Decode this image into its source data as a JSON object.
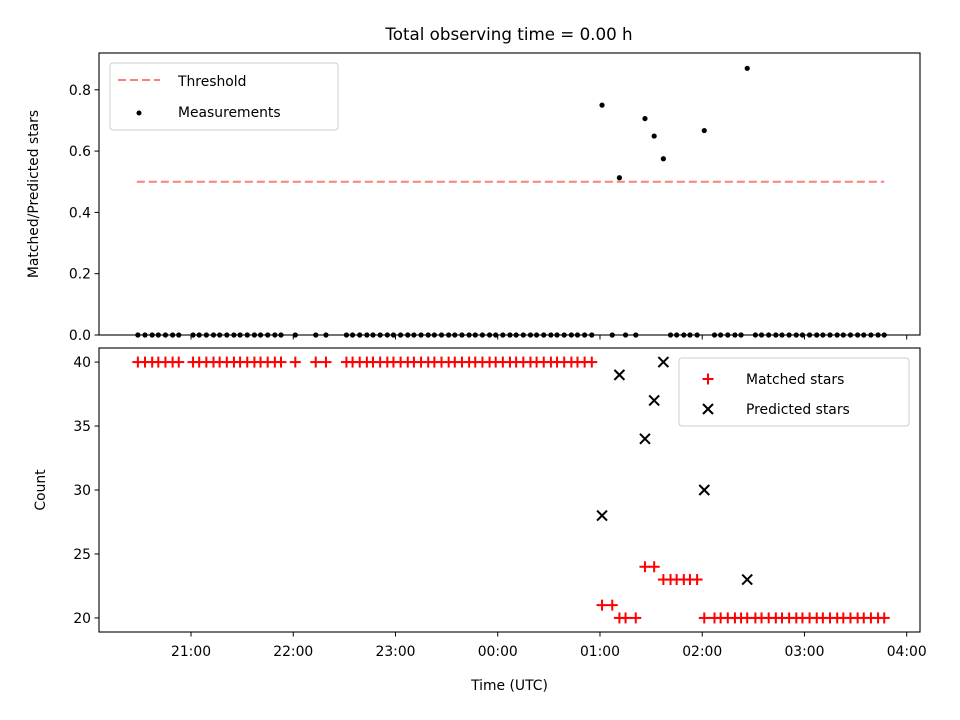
{
  "chart_data": {
    "title": "Total observing time = 0.00 h",
    "xlabel": "Time (UTC)",
    "x_tick_labels": [
      "21:00",
      "22:00",
      "23:00",
      "00:00",
      "01:00",
      "02:00",
      "03:00",
      "04:00"
    ],
    "x_ticks_hours": [
      21,
      22,
      23,
      24,
      25,
      26,
      27,
      28
    ],
    "xlim_hours": [
      20.1,
      28.13
    ],
    "colors": {
      "threshold": "#ff7f7f",
      "measurements": "#000000",
      "matched": "#ff0000",
      "predicted": "#000000"
    },
    "panels": [
      {
        "type": "scatter",
        "ylabel": "Matched/Predicted stars",
        "ylim": [
          0,
          0.92
        ],
        "yticks": [
          0.0,
          0.2,
          0.4,
          0.6,
          0.8
        ],
        "ytick_labels": [
          "0.0",
          "0.2",
          "0.4",
          "0.6",
          "0.8"
        ],
        "legend_position": "upper left",
        "threshold": {
          "name": "Threshold",
          "value": 0.5,
          "x_start": 20.47,
          "x_end": 27.78
        },
        "measurements": {
          "name": "Measurements",
          "points": [
            [
              20.48,
              0
            ],
            [
              20.55,
              0
            ],
            [
              20.62,
              0
            ],
            [
              20.68,
              0
            ],
            [
              20.75,
              0
            ],
            [
              20.82,
              0
            ],
            [
              20.88,
              0
            ],
            [
              21.02,
              0
            ],
            [
              21.08,
              0
            ],
            [
              21.15,
              0
            ],
            [
              21.22,
              0
            ],
            [
              21.28,
              0
            ],
            [
              21.35,
              0
            ],
            [
              21.42,
              0
            ],
            [
              21.48,
              0
            ],
            [
              21.55,
              0
            ],
            [
              21.62,
              0
            ],
            [
              21.68,
              0
            ],
            [
              21.75,
              0
            ],
            [
              21.82,
              0
            ],
            [
              21.88,
              0
            ],
            [
              22.02,
              0
            ],
            [
              22.22,
              0
            ],
            [
              22.32,
              0
            ],
            [
              22.52,
              0
            ],
            [
              22.58,
              0
            ],
            [
              22.65,
              0
            ],
            [
              22.72,
              0
            ],
            [
              22.78,
              0
            ],
            [
              22.85,
              0
            ],
            [
              22.92,
              0
            ],
            [
              22.98,
              0
            ],
            [
              23.05,
              0
            ],
            [
              23.12,
              0
            ],
            [
              23.18,
              0
            ],
            [
              23.25,
              0
            ],
            [
              23.32,
              0
            ],
            [
              23.38,
              0
            ],
            [
              23.45,
              0
            ],
            [
              23.52,
              0
            ],
            [
              23.58,
              0
            ],
            [
              23.65,
              0
            ],
            [
              23.72,
              0
            ],
            [
              23.78,
              0
            ],
            [
              23.85,
              0
            ],
            [
              23.92,
              0
            ],
            [
              23.98,
              0
            ],
            [
              24.05,
              0
            ],
            [
              24.12,
              0
            ],
            [
              24.18,
              0
            ],
            [
              24.25,
              0
            ],
            [
              24.32,
              0
            ],
            [
              24.38,
              0
            ],
            [
              24.45,
              0
            ],
            [
              24.52,
              0
            ],
            [
              24.58,
              0
            ],
            [
              24.65,
              0
            ],
            [
              24.72,
              0
            ],
            [
              24.78,
              0
            ],
            [
              24.85,
              0
            ],
            [
              24.92,
              0
            ],
            [
              25.02,
              0.75
            ],
            [
              25.12,
              0
            ],
            [
              25.19,
              0.513
            ],
            [
              25.25,
              0
            ],
            [
              25.35,
              0
            ],
            [
              25.44,
              0.706
            ],
            [
              25.53,
              0.649
            ],
            [
              25.62,
              0.575
            ],
            [
              25.69,
              0
            ],
            [
              25.75,
              0
            ],
            [
              25.82,
              0
            ],
            [
              25.88,
              0
            ],
            [
              25.95,
              0
            ],
            [
              26.02,
              0.667
            ],
            [
              26.12,
              0
            ],
            [
              26.18,
              0
            ],
            [
              26.25,
              0
            ],
            [
              26.32,
              0
            ],
            [
              26.38,
              0
            ],
            [
              26.44,
              0.87
            ],
            [
              26.52,
              0
            ],
            [
              26.58,
              0
            ],
            [
              26.65,
              0
            ],
            [
              26.72,
              0
            ],
            [
              26.78,
              0
            ],
            [
              26.85,
              0
            ],
            [
              26.92,
              0
            ],
            [
              26.98,
              0
            ],
            [
              27.05,
              0
            ],
            [
              27.12,
              0
            ],
            [
              27.18,
              0
            ],
            [
              27.25,
              0
            ],
            [
              27.32,
              0
            ],
            [
              27.38,
              0
            ],
            [
              27.45,
              0
            ],
            [
              27.52,
              0
            ],
            [
              27.58,
              0
            ],
            [
              27.65,
              0
            ],
            [
              27.72,
              0
            ],
            [
              27.78,
              0
            ]
          ]
        }
      },
      {
        "type": "scatter",
        "ylabel": "Count",
        "ylim": [
          18.9,
          41.1
        ],
        "yticks": [
          20,
          25,
          30,
          35,
          40
        ],
        "ytick_labels": [
          "20",
          "25",
          "30",
          "35",
          "40"
        ],
        "legend_position": "upper right",
        "matched": {
          "name": "Matched stars",
          "points": [
            [
              20.48,
              40
            ],
            [
              20.55,
              40
            ],
            [
              20.62,
              40
            ],
            [
              20.68,
              40
            ],
            [
              20.75,
              40
            ],
            [
              20.82,
              40
            ],
            [
              20.88,
              40
            ],
            [
              21.02,
              40
            ],
            [
              21.08,
              40
            ],
            [
              21.15,
              40
            ],
            [
              21.22,
              40
            ],
            [
              21.28,
              40
            ],
            [
              21.35,
              40
            ],
            [
              21.42,
              40
            ],
            [
              21.48,
              40
            ],
            [
              21.55,
              40
            ],
            [
              21.62,
              40
            ],
            [
              21.68,
              40
            ],
            [
              21.75,
              40
            ],
            [
              21.82,
              40
            ],
            [
              21.88,
              40
            ],
            [
              22.02,
              40
            ],
            [
              22.22,
              40
            ],
            [
              22.32,
              40
            ],
            [
              22.52,
              40
            ],
            [
              22.58,
              40
            ],
            [
              22.65,
              40
            ],
            [
              22.72,
              40
            ],
            [
              22.78,
              40
            ],
            [
              22.85,
              40
            ],
            [
              22.92,
              40
            ],
            [
              22.98,
              40
            ],
            [
              23.05,
              40
            ],
            [
              23.12,
              40
            ],
            [
              23.18,
              40
            ],
            [
              23.25,
              40
            ],
            [
              23.32,
              40
            ],
            [
              23.38,
              40
            ],
            [
              23.45,
              40
            ],
            [
              23.52,
              40
            ],
            [
              23.58,
              40
            ],
            [
              23.65,
              40
            ],
            [
              23.72,
              40
            ],
            [
              23.78,
              40
            ],
            [
              23.85,
              40
            ],
            [
              23.92,
              40
            ],
            [
              23.98,
              40
            ],
            [
              24.05,
              40
            ],
            [
              24.12,
              40
            ],
            [
              24.18,
              40
            ],
            [
              24.25,
              40
            ],
            [
              24.32,
              40
            ],
            [
              24.38,
              40
            ],
            [
              24.45,
              40
            ],
            [
              24.52,
              40
            ],
            [
              24.58,
              40
            ],
            [
              24.65,
              40
            ],
            [
              24.72,
              40
            ],
            [
              24.78,
              40
            ],
            [
              24.85,
              40
            ],
            [
              24.92,
              40
            ],
            [
              25.02,
              21
            ],
            [
              25.12,
              21
            ],
            [
              25.19,
              20
            ],
            [
              25.25,
              20
            ],
            [
              25.35,
              20
            ],
            [
              25.44,
              24
            ],
            [
              25.53,
              24
            ],
            [
              25.62,
              23
            ],
            [
              25.69,
              23
            ],
            [
              25.75,
              23
            ],
            [
              25.82,
              23
            ],
            [
              25.88,
              23
            ],
            [
              25.95,
              23
            ],
            [
              26.02,
              20
            ],
            [
              26.12,
              20
            ],
            [
              26.18,
              20
            ],
            [
              26.25,
              20
            ],
            [
              26.32,
              20
            ],
            [
              26.38,
              20
            ],
            [
              26.44,
              20
            ],
            [
              26.52,
              20
            ],
            [
              26.58,
              20
            ],
            [
              26.65,
              20
            ],
            [
              26.72,
              20
            ],
            [
              26.78,
              20
            ],
            [
              26.85,
              20
            ],
            [
              26.92,
              20
            ],
            [
              26.98,
              20
            ],
            [
              27.05,
              20
            ],
            [
              27.12,
              20
            ],
            [
              27.18,
              20
            ],
            [
              27.25,
              20
            ],
            [
              27.32,
              20
            ],
            [
              27.38,
              20
            ],
            [
              27.45,
              20
            ],
            [
              27.52,
              20
            ],
            [
              27.58,
              20
            ],
            [
              27.65,
              20
            ],
            [
              27.72,
              20
            ],
            [
              27.78,
              20
            ]
          ]
        },
        "predicted": {
          "name": "Predicted stars",
          "points": [
            [
              25.02,
              28
            ],
            [
              25.19,
              39
            ],
            [
              25.44,
              34
            ],
            [
              25.53,
              37
            ],
            [
              25.62,
              40
            ],
            [
              26.02,
              30
            ],
            [
              26.44,
              23
            ]
          ]
        }
      }
    ]
  }
}
